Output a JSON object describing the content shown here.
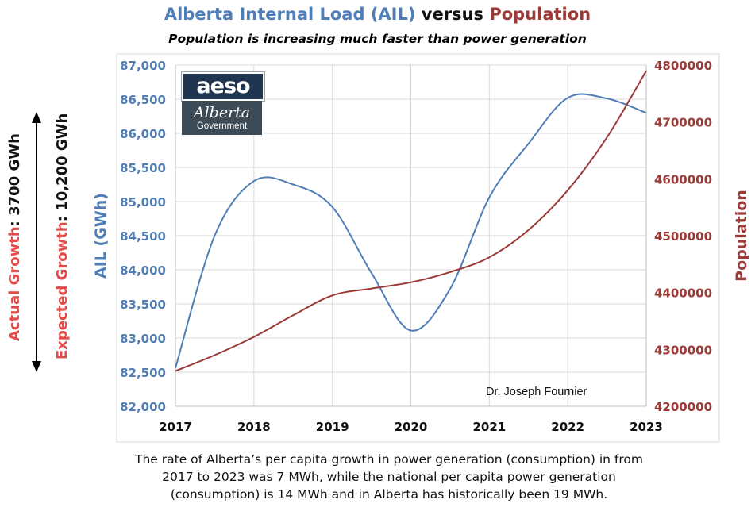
{
  "title": {
    "part1": "Alberta Internal Load (AIL)",
    "part2": " versus ",
    "part3": "Population",
    "subtitle": "Population is increasing much faster than power generation"
  },
  "colors": {
    "ail": "#4f7db6",
    "population": "#9b3a37",
    "actual_label": "#e24b47",
    "expected_label": "#e24b47",
    "grid": "#d9d9d9"
  },
  "side_labels": {
    "actual_name": "Actual Growth",
    "actual_value": ": 3700 GWh",
    "expected_name": "Expected Growth",
    "expected_value": ": 10,200 GWh"
  },
  "logos": {
    "aeso_text": "aeso",
    "gov_script": "Alberta",
    "gov_text": "Government"
  },
  "author": "Dr. Joseph Fournier",
  "caption": [
    "The rate of Alberta’s per capita growth in power generation (consumption) in from",
    "2017 to 2023 was 7 MWh, while the national per capita power generation",
    "(consumption) is 14 MWh and in Alberta has historically been 19 MWh."
  ],
  "chart_data": {
    "type": "line",
    "x": [
      2017,
      2018,
      2019,
      2020,
      2021,
      2022,
      2023
    ],
    "xlim": [
      2017,
      2023
    ],
    "xticks": [
      "2017",
      "2018",
      "2019",
      "2020",
      "2021",
      "2022",
      "2023"
    ],
    "ylabel": "AIL (GWh)",
    "y2label": "Population",
    "ylim": [
      82000,
      87000
    ],
    "yticks": [
      "82,000",
      "82,500",
      "83,000",
      "83,500",
      "84,000",
      "84,500",
      "85,000",
      "85,500",
      "86,000",
      "86,500",
      "87,000"
    ],
    "y2lim": [
      4200000,
      4800000
    ],
    "y2ticks": [
      "4200000",
      "4300000",
      "4400000",
      "4500000",
      "4600000",
      "4700000",
      "4800000"
    ],
    "grid": true,
    "series": [
      {
        "axis": "left",
        "color": "#4f7db6",
        "points": [
          [
            2017,
            82560
          ],
          [
            2017.5,
            84500
          ],
          [
            2018,
            85300
          ],
          [
            2018.5,
            85250
          ],
          [
            2019,
            84920
          ],
          [
            2019.5,
            83950
          ],
          [
            2020,
            83110
          ],
          [
            2020.5,
            83720
          ],
          [
            2021,
            85060
          ],
          [
            2021.5,
            85850
          ],
          [
            2022,
            86520
          ],
          [
            2022.5,
            86510
          ],
          [
            2023,
            86300
          ]
        ]
      },
      {
        "axis": "right",
        "color": "#9b3a37",
        "points": [
          [
            2017,
            4262000
          ],
          [
            2017.5,
            4290000
          ],
          [
            2018,
            4322000
          ],
          [
            2018.5,
            4360000
          ],
          [
            2019,
            4395000
          ],
          [
            2019.5,
            4407000
          ],
          [
            2020,
            4418000
          ],
          [
            2020.5,
            4436000
          ],
          [
            2021,
            4462000
          ],
          [
            2021.5,
            4510000
          ],
          [
            2022,
            4580000
          ],
          [
            2022.5,
            4673000
          ],
          [
            2023,
            4790000
          ]
        ]
      }
    ]
  }
}
